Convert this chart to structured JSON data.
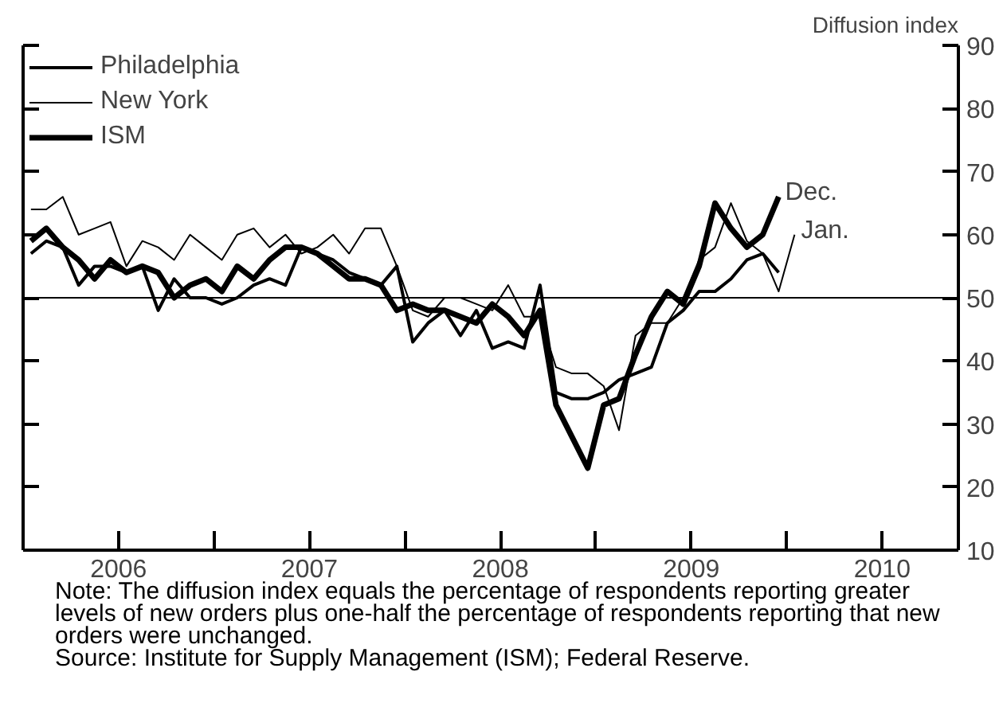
{
  "chart_data": {
    "type": "line",
    "ylabel": "Diffusion index",
    "x": [
      "2006-01-16",
      "2006-02-15",
      "2006-03-16",
      "2006-04-16",
      "2006-05-16",
      "2006-06-16",
      "2006-07-16",
      "2006-08-16",
      "2006-09-16",
      "2006-10-16",
      "2006-11-16",
      "2006-12-16",
      "2007-01-16",
      "2007-02-15",
      "2007-03-16",
      "2007-04-16",
      "2007-05-16",
      "2007-06-16",
      "2007-07-16",
      "2007-08-16",
      "2007-09-16",
      "2007-10-16",
      "2007-11-16",
      "2007-12-16",
      "2008-01-16",
      "2008-02-15",
      "2008-03-16",
      "2008-04-16",
      "2008-05-16",
      "2008-06-16",
      "2008-07-16",
      "2008-08-16",
      "2008-09-16",
      "2008-10-16",
      "2008-11-16",
      "2008-12-16",
      "2009-01-16",
      "2009-02-15",
      "2009-03-16",
      "2009-04-16",
      "2009-05-16",
      "2009-06-16",
      "2009-07-16",
      "2009-08-16",
      "2009-09-16",
      "2009-10-16",
      "2009-11-16",
      "2009-12-16",
      "2010-01-16"
    ],
    "series": [
      {
        "name": "Philadelphia",
        "color": "#000000",
        "values": [
          57,
          59,
          58,
          52,
          55,
          55,
          54,
          55,
          48,
          53,
          50,
          50,
          49,
          50,
          52,
          53,
          52,
          58,
          57,
          56,
          54,
          53,
          52,
          55,
          43,
          46,
          48,
          44,
          48,
          42,
          43,
          42,
          52,
          35,
          34,
          34,
          35,
          37,
          38,
          39,
          46,
          48,
          51,
          51,
          53,
          56,
          57,
          54,
          null
        ]
      },
      {
        "name": "New York",
        "color": "#000000",
        "values": [
          64,
          64,
          66,
          60,
          61,
          62,
          55,
          59,
          58,
          56,
          60,
          58,
          56,
          60,
          61,
          58,
          60,
          57,
          58,
          60,
          57,
          61,
          61,
          55,
          48,
          47,
          50,
          50,
          49,
          48,
          52,
          47,
          47,
          39,
          38,
          38,
          36,
          29,
          44,
          46,
          46,
          50,
          56,
          58,
          65,
          59,
          57,
          51,
          60
        ]
      },
      {
        "name": "ISM",
        "color": "#000000",
        "values": [
          59,
          61,
          58,
          56,
          53,
          56,
          54,
          55,
          54,
          50,
          52,
          53,
          51,
          55,
          53,
          56,
          58,
          58,
          57,
          55,
          53,
          53,
          52,
          48,
          49,
          48,
          48,
          47,
          46,
          49,
          47,
          44,
          48,
          33,
          28,
          23,
          33,
          34,
          41,
          47,
          51,
          49,
          55,
          65,
          61,
          58,
          60,
          66,
          null
        ]
      }
    ],
    "xlim": [
      "2006-01-01",
      "2010-11-25"
    ],
    "xticks": [
      {
        "value": "2007-01-01",
        "label": null
      },
      {
        "value": "2008-01-01",
        "label": null
      },
      {
        "value": "2009-01-01",
        "label": null
      },
      {
        "value": "2010-01-01",
        "label": null
      },
      {
        "value": "2006-07-01",
        "label": "2006"
      },
      {
        "value": "2007-07-01",
        "label": "2007"
      },
      {
        "value": "2008-07-01",
        "label": "2008"
      },
      {
        "value": "2009-07-01",
        "label": "2009"
      },
      {
        "value": "2010-07-01",
        "label": "2010"
      }
    ],
    "ylim": [
      10,
      90
    ],
    "yticks": [
      10,
      20,
      30,
      40,
      50,
      60,
      70,
      80,
      90
    ],
    "ref_lines": [
      {
        "axis": "y",
        "value": 50,
        "label": null
      }
    ],
    "legend": "top left",
    "grid": false,
    "annotations": [
      {
        "text": "Dec.",
        "x": "2009-12-16",
        "y": 66
      },
      {
        "text": "Jan.",
        "x": "2010-01-16",
        "y": 60
      },
      "Note: The diffusion index equals the percentage of respondents reporting greater levels of new orders plus one-half the percentage of respondents reporting that new orders were unchanged.",
      "Source: Institute for Supply Management (ISM); Federal Reserve."
    ]
  }
}
